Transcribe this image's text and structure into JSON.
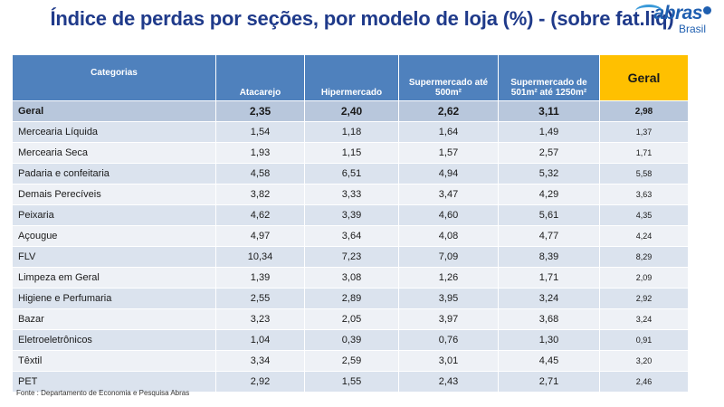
{
  "title": "Índice de perdas por seções, por modelo de loja (%) - (sobre fat.liq)",
  "logo": {
    "word": "abras",
    "sub": "Brasil"
  },
  "table": {
    "headers": [
      "Categorias",
      "Atacarejo",
      "Hipermercado",
      "Supermercado até 500m²",
      "Supermercado de 501m² até 1250m²",
      "Geral"
    ],
    "total_row": {
      "label": "Geral",
      "values": [
        "2,35",
        "2,40",
        "2,62",
        "3,11",
        "2,98"
      ]
    },
    "rows": [
      {
        "label": "Mercearia Líquida",
        "values": [
          "1,54",
          "1,18",
          "1,64",
          "1,49",
          "1,37"
        ]
      },
      {
        "label": "Mercearia Seca",
        "values": [
          "1,93",
          "1,15",
          "1,57",
          "2,57",
          "1,71"
        ]
      },
      {
        "label": "Padaria e confeitaria",
        "values": [
          "4,58",
          "6,51",
          "4,94",
          "5,32",
          "5,58"
        ]
      },
      {
        "label": "Demais Perecíveis",
        "values": [
          "3,82",
          "3,33",
          "3,47",
          "4,29",
          "3,63"
        ]
      },
      {
        "label": "Peixaria",
        "values": [
          "4,62",
          "3,39",
          "4,60",
          "5,61",
          "4,35"
        ]
      },
      {
        "label": "Açougue",
        "values": [
          "4,97",
          "3,64",
          "4,08",
          "4,77",
          "4,24"
        ]
      },
      {
        "label": "FLV",
        "values": [
          "10,34",
          "7,23",
          "7,09",
          "8,39",
          "8,29"
        ]
      },
      {
        "label": "Limpeza em Geral",
        "values": [
          "1,39",
          "3,08",
          "1,26",
          "1,71",
          "2,09"
        ]
      },
      {
        "label": "Higiene e Perfumaria",
        "values": [
          "2,55",
          "2,89",
          "3,95",
          "3,24",
          "2,92"
        ]
      },
      {
        "label": "Bazar",
        "values": [
          "3,23",
          "2,05",
          "3,97",
          "3,68",
          "3,24"
        ]
      },
      {
        "label": "Eletroeletrônicos",
        "values": [
          "1,04",
          "0,39",
          "0,76",
          "1,30",
          "0,91"
        ]
      },
      {
        "label": "Têxtil",
        "values": [
          "3,34",
          "2,59",
          "3,01",
          "4,45",
          "3,20"
        ]
      },
      {
        "label": "PET",
        "values": [
          "2,92",
          "1,55",
          "2,43",
          "2,71",
          "2,46"
        ]
      }
    ]
  },
  "footer": "Fonte : Departamento de Economia e Pesquisa Abras",
  "colors": {
    "title": "#1f3a8a",
    "header_bg": "#4f81bd",
    "geral_header_bg": "#ffc000",
    "total_row_bg": "#b8c7dc",
    "row_odd_bg": "#dbe3ee",
    "row_even_bg": "#eef1f6",
    "logo": "#1f5fb0"
  }
}
